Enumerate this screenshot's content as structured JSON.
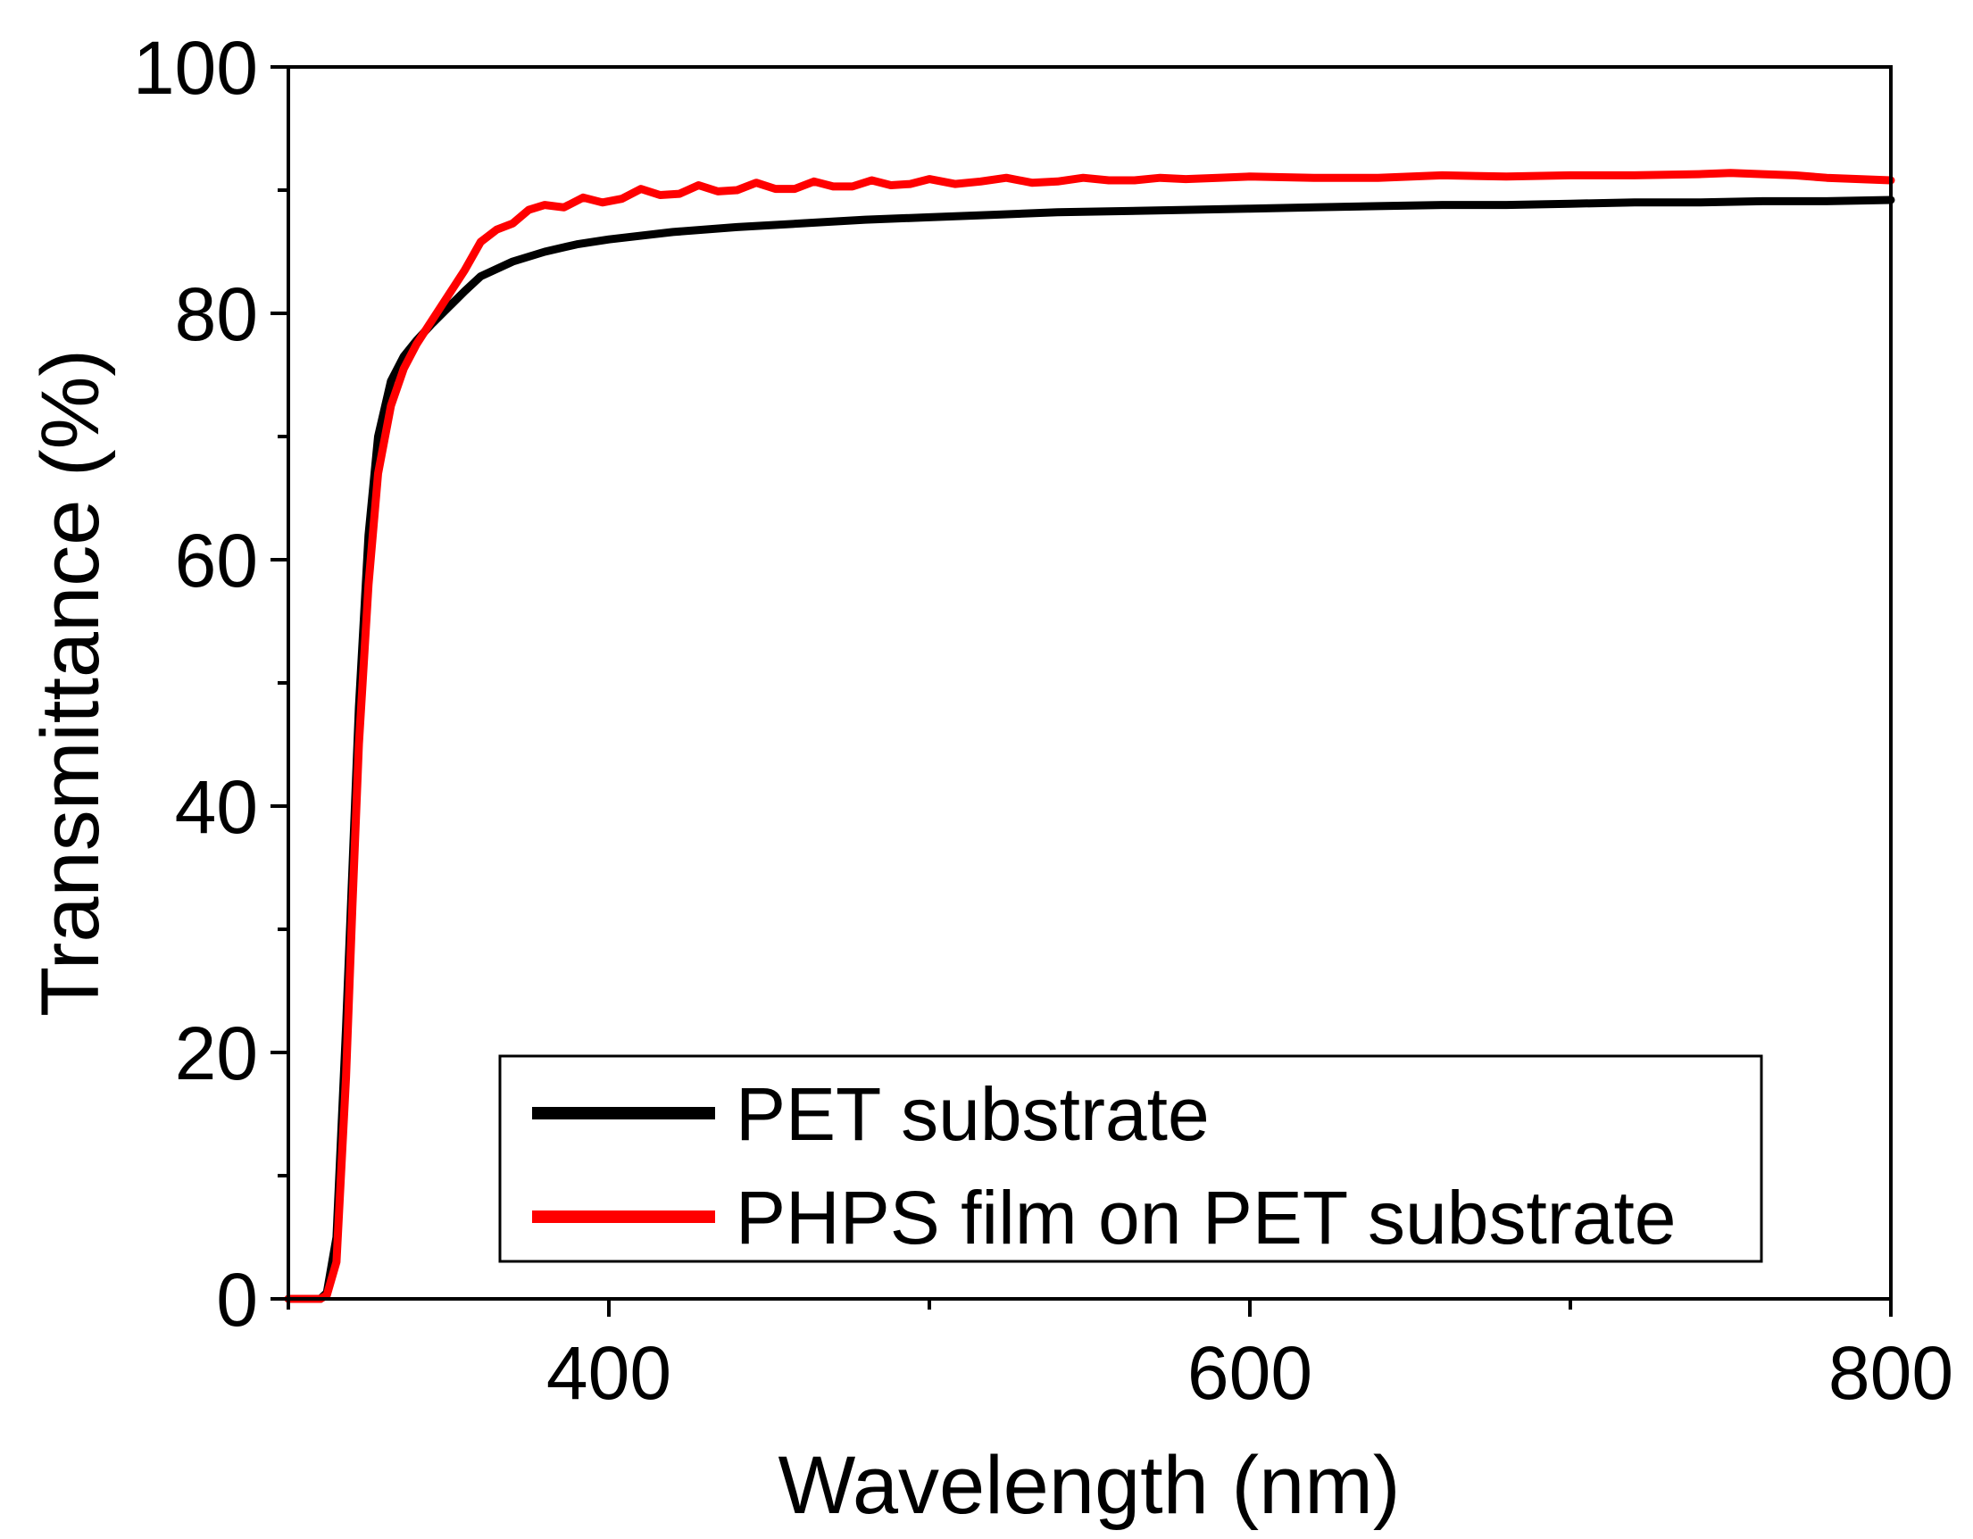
{
  "chart_data": {
    "type": "line",
    "title": "",
    "xlabel": "Wavelength (nm)",
    "ylabel": "Transmittance (%)",
    "xlim": [
      300,
      800
    ],
    "ylim": [
      0,
      100
    ],
    "x_ticks": [
      400,
      600,
      800
    ],
    "x_minor_ticks": [
      300,
      500,
      700
    ],
    "y_ticks": [
      0,
      20,
      40,
      60,
      80,
      100
    ],
    "y_minor_ticks": [
      10,
      30,
      50,
      70,
      90
    ],
    "x_tick_labels": [
      "400",
      "600",
      "800"
    ],
    "y_tick_labels": [
      "0",
      "20",
      "40",
      "60",
      "80",
      "100"
    ],
    "legend": {
      "position": "bottom-right"
    },
    "series": [
      {
        "name": "PET substrate",
        "color": "#000000",
        "x": [
          300,
          310,
          312,
          315,
          318,
          320,
          322,
          325,
          328,
          332,
          336,
          340,
          345,
          350,
          355,
          360,
          370,
          380,
          390,
          400,
          420,
          440,
          460,
          480,
          500,
          520,
          540,
          560,
          580,
          600,
          620,
          640,
          660,
          680,
          700,
          720,
          740,
          760,
          780,
          800
        ],
        "y": [
          0,
          0,
          0.5,
          5,
          22,
          35,
          48,
          62,
          70,
          74.5,
          76.5,
          77.8,
          79.2,
          80.5,
          81.8,
          83,
          84.2,
          85,
          85.6,
          86,
          86.6,
          87,
          87.3,
          87.6,
          87.8,
          88,
          88.2,
          88.3,
          88.4,
          88.5,
          88.6,
          88.7,
          88.8,
          88.8,
          88.9,
          89,
          89,
          89.1,
          89.1,
          89.2
        ]
      },
      {
        "name": "PHPS film on PET substrate",
        "color": "#ff0000",
        "x": [
          300,
          310,
          312,
          315,
          318,
          320,
          322,
          325,
          328,
          332,
          336,
          340,
          345,
          350,
          355,
          360,
          365,
          370,
          375,
          380,
          386,
          392,
          398,
          404,
          410,
          416,
          422,
          428,
          434,
          440,
          446,
          452,
          458,
          464,
          470,
          476,
          482,
          488,
          494,
          500,
          508,
          516,
          524,
          532,
          540,
          548,
          556,
          564,
          572,
          580,
          590,
          600,
          620,
          640,
          660,
          680,
          700,
          720,
          740,
          750,
          760,
          770,
          780,
          790,
          800
        ],
        "y": [
          0,
          0,
          0.3,
          3,
          18,
          32,
          45,
          58,
          67,
          72.5,
          75.5,
          77.5,
          79.5,
          81.5,
          83.5,
          85.8,
          86.8,
          87.3,
          88.4,
          88.8,
          88.6,
          89.4,
          89.0,
          89.3,
          90.1,
          89.6,
          89.7,
          90.4,
          89.9,
          90.0,
          90.6,
          90.1,
          90.1,
          90.7,
          90.3,
          90.3,
          90.8,
          90.4,
          90.5,
          90.9,
          90.5,
          90.7,
          91.0,
          90.6,
          90.7,
          91.0,
          90.8,
          90.8,
          91.0,
          90.9,
          91.0,
          91.1,
          91.0,
          91.0,
          91.2,
          91.1,
          91.2,
          91.2,
          91.3,
          91.4,
          91.3,
          91.2,
          91.0,
          90.9,
          90.8
        ]
      }
    ]
  }
}
